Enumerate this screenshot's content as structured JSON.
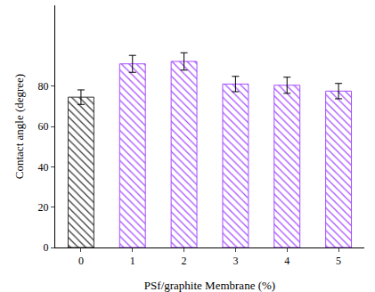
{
  "chart_data": {
    "type": "bar",
    "x_label": "PSf/graphite Membrane (%)",
    "y_label": "Contact angle (degree)",
    "categories": [
      "0",
      "1",
      "2",
      "3",
      "4",
      "5"
    ],
    "values": [
      74.5,
      91,
      92.2,
      81,
      80.4,
      77.5
    ],
    "errors": [
      3.6,
      4.2,
      4.3,
      3.8,
      4,
      3.8
    ],
    "colors": [
      "#333333",
      "#a64dff",
      "#a64dff",
      "#a64dff",
      "#a64dff",
      "#a64dff"
    ],
    "ylim": [
      0,
      120
    ],
    "yticks": [
      0,
      20,
      40,
      60,
      80
    ],
    "grid": false
  }
}
